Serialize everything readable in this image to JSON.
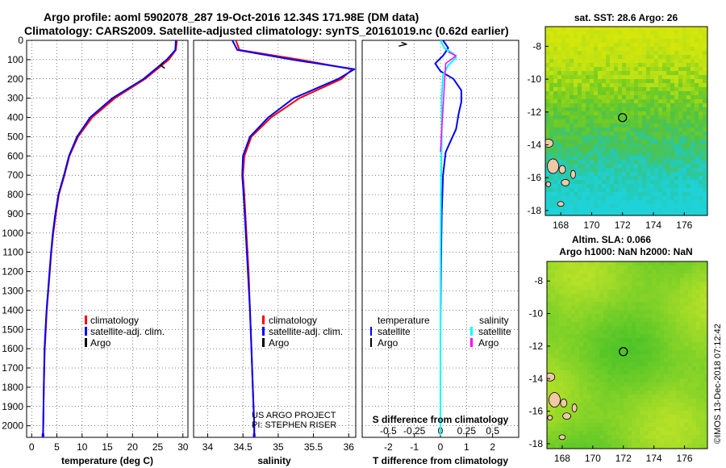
{
  "title": {
    "line1": "Argo profile: aoml 5902078_287 19-Oct-2016 12.34S 171.98E (DM data)",
    "line2": "Climatology: CARS2009. Satellite-adjusted climatology: synTS_20161019.nc (0.62d earlier)"
  },
  "colors": {
    "climatology": "#ff0000",
    "satellite": "#0000ff",
    "argo": "#000000",
    "sal_satellite": "#00ffff",
    "sal_argo": "#ff00ff",
    "map_land": "#f0c8a8"
  },
  "credits": {
    "line1": "US ARGO PROJECT",
    "line2": "PI: STEPHEN RISER"
  },
  "timestamp": "©IMOS 13-Dec-2018 07:12:42",
  "chart_data": [
    {
      "type": "line",
      "xlabel": "temperature (deg C)",
      "xlim": [
        -1,
        31
      ],
      "xticks": [
        0,
        5,
        10,
        15,
        20,
        25,
        30
      ],
      "ylim": [
        2060,
        0
      ],
      "yticks": [
        0,
        100,
        200,
        300,
        400,
        500,
        600,
        700,
        800,
        900,
        1000,
        1100,
        1200,
        1300,
        1400,
        1500,
        1600,
        1700,
        1800,
        1900,
        2000
      ],
      "legend": {
        "location": "lower-center",
        "items": [
          "climatology",
          "satellite-adj. clim.",
          "Argo"
        ]
      },
      "series": [
        {
          "name": "climatology",
          "color": "#ff0000",
          "x": [
            28.8,
            28.6,
            27.2,
            22.5,
            16.5,
            12.0,
            9.2,
            7.5,
            6.5,
            5.4,
            4.8,
            4.3,
            3.9,
            3.6,
            3.3,
            3.0,
            2.8,
            2.6,
            2.4,
            2.3,
            2.25
          ],
          "y": [
            0,
            50,
            100,
            200,
            300,
            400,
            500,
            600,
            700,
            800,
            900,
            1000,
            1100,
            1200,
            1300,
            1400,
            1500,
            1600,
            1800,
            2000,
            2050
          ]
        },
        {
          "name": "satellite-adj. clim.",
          "color": "#0000ff",
          "x": [
            28.6,
            28.5,
            26.8,
            22.2,
            16.0,
            11.6,
            9.0,
            7.4,
            6.4,
            5.3,
            4.7,
            4.2,
            3.85,
            3.55,
            3.25,
            2.95,
            2.75,
            2.55,
            2.4,
            2.3,
            2.25
          ],
          "y": [
            0,
            50,
            100,
            200,
            300,
            400,
            500,
            600,
            700,
            800,
            900,
            1000,
            1100,
            1200,
            1300,
            1400,
            1500,
            1600,
            1800,
            2000,
            2050
          ]
        },
        {
          "name": "Argo",
          "color": "#000000",
          "x": [
            26.2,
            25.6,
            26.4
          ],
          "y": [
            110,
            130,
            145
          ]
        }
      ]
    },
    {
      "type": "line",
      "xlabel": "salinity",
      "xlim": [
        33.8,
        36.1
      ],
      "xticks": [
        34,
        34.5,
        35,
        35.5,
        36
      ],
      "ylim": [
        2060,
        0
      ],
      "yticks": [
        0,
        100,
        200,
        300,
        400,
        500,
        600,
        700,
        800,
        900,
        1000,
        1100,
        1200,
        1300,
        1400,
        1500,
        1600,
        1700,
        1800,
        1900,
        2000
      ],
      "legend": {
        "location": "lower-center",
        "items": [
          "climatology",
          "satellite-adj. clim.",
          "Argo"
        ]
      },
      "series": [
        {
          "name": "climatology",
          "color": "#ff0000",
          "x": [
            34.4,
            34.45,
            35.3,
            36.05,
            35.9,
            35.3,
            34.9,
            34.62,
            34.52,
            34.5,
            34.52,
            34.55,
            34.58,
            34.6,
            34.62,
            34.64,
            34.65,
            34.66,
            34.66
          ],
          "y": [
            0,
            50,
            100,
            150,
            200,
            300,
            400,
            500,
            600,
            700,
            800,
            1000,
            1200,
            1400,
            1600,
            1800,
            1900,
            2000,
            2050
          ]
        },
        {
          "name": "satellite-adj. clim.",
          "color": "#0000ff",
          "x": [
            34.35,
            34.42,
            35.2,
            36.08,
            35.85,
            35.22,
            34.86,
            34.6,
            34.5,
            34.49,
            34.51,
            34.54,
            34.57,
            34.6,
            34.62,
            34.64,
            34.65,
            34.66,
            34.66
          ],
          "y": [
            0,
            50,
            100,
            150,
            200,
            300,
            400,
            500,
            600,
            700,
            800,
            1000,
            1200,
            1400,
            1600,
            1800,
            1900,
            2000,
            2050
          ]
        }
      ]
    },
    {
      "type": "line",
      "xlabel": "T difference from climatology",
      "xlabel_top": "S difference from climatology",
      "xlim": [
        -3,
        3
      ],
      "xticks": [
        -2,
        -1,
        0,
        1,
        2
      ],
      "xticks_top": [
        "-0.5",
        "-0.25",
        "0",
        "0.25",
        "0.5"
      ],
      "ylim": [
        2060,
        0
      ],
      "legend": {
        "location": "lower-center",
        "temperature": {
          "heading": "temperature",
          "items": [
            "satellite",
            "Argo"
          ]
        },
        "salinity": {
          "heading": "salinity",
          "items": [
            "satellite",
            "Argo"
          ]
        }
      },
      "series": [
        {
          "name": "satellite",
          "group": "temperature",
          "color": "#0000ff",
          "x": [
            0.1,
            0.3,
            0.1,
            -0.2,
            0.0,
            0.5,
            0.8,
            0.8,
            0.7,
            0.6,
            0.4,
            0.2,
            0.1,
            0.05,
            0.02,
            0.0,
            0.0,
            0.0
          ],
          "y": [
            0,
            40,
            80,
            120,
            160,
            200,
            260,
            320,
            380,
            460,
            520,
            580,
            700,
            900,
            1200,
            1500,
            1800,
            2050
          ]
        },
        {
          "name": "Argo",
          "group": "temperature",
          "color": "#000000",
          "x": [
            -1.5,
            -1.3,
            -1.6
          ],
          "y": [
            10,
            20,
            30
          ]
        },
        {
          "name": "satellite",
          "group": "salinity",
          "color": "#00ffff",
          "x": [
            0.0,
            0.15,
            0.5,
            0.6,
            0.3,
            0.1,
            0.05,
            0.05,
            0.02,
            0.0,
            0.0,
            0.0
          ],
          "y": [
            0,
            40,
            70,
            90,
            130,
            180,
            300,
            500,
            800,
            1200,
            1600,
            2050
          ]
        },
        {
          "name": "Argo",
          "group": "salinity",
          "color": "#ff00ff",
          "x": [
            0.3,
            0.6,
            0.2,
            0.0
          ],
          "y": [
            60,
            80,
            120,
            580
          ]
        }
      ]
    },
    {
      "type": "heatmap",
      "title": "sat. SST: 28.6 Argo: 26",
      "xlim": [
        167,
        177.5
      ],
      "ylim": [
        -18.3,
        -6.8
      ],
      "xticks": [
        168,
        170,
        172,
        174,
        176
      ],
      "yticks": [
        -8,
        -10,
        -12,
        -14,
        -16,
        -18
      ],
      "argo_position": [
        172,
        -12.34
      ]
    },
    {
      "type": "heatmap",
      "title_line1": "Altim. SLA: 0.066",
      "title_line2": "Argo h1000: NaN h2000: NaN",
      "xlim": [
        167,
        177.5
      ],
      "ylim": [
        -18.3,
        -6.8
      ],
      "xticks": [
        168,
        170,
        172,
        174,
        176
      ],
      "yticks": [
        -8,
        -10,
        -12,
        -14,
        -16,
        -18
      ],
      "argo_position": [
        172,
        -12.34
      ]
    }
  ]
}
